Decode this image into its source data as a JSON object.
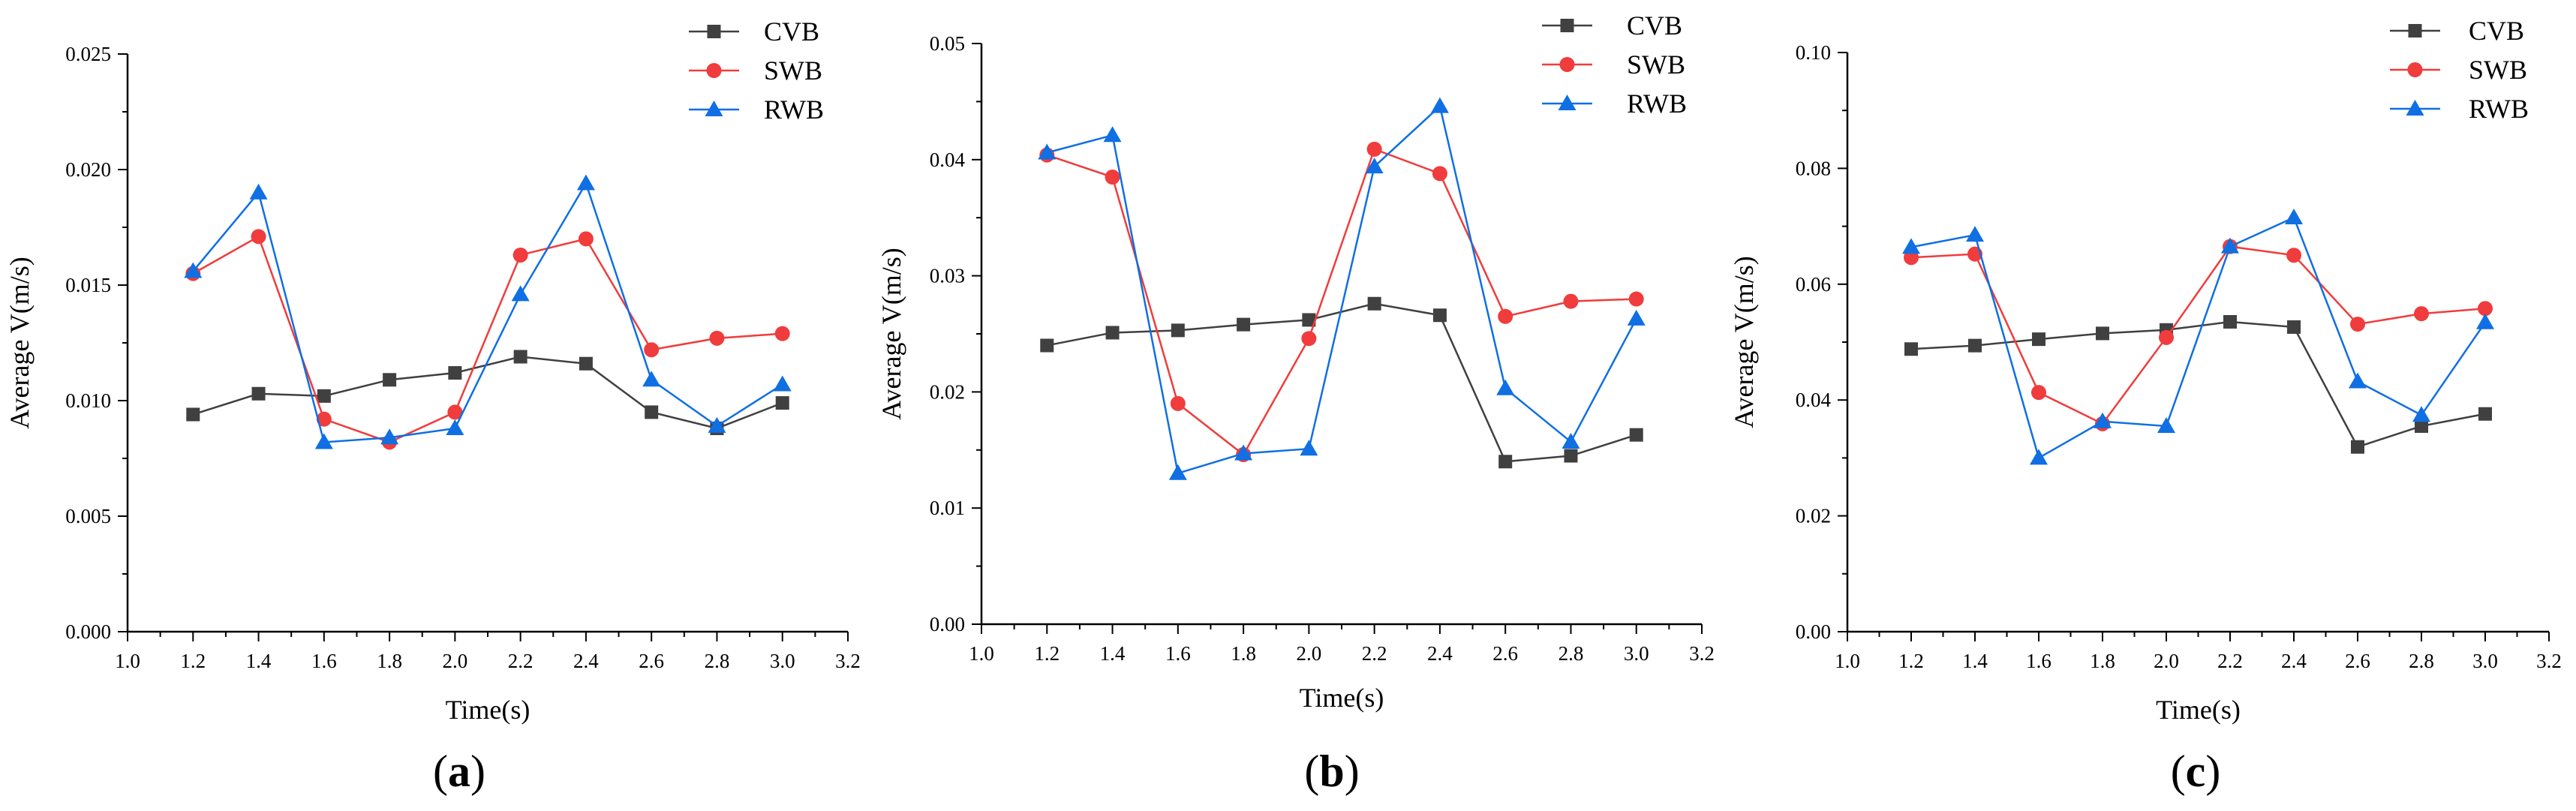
{
  "colors": {
    "CVB": "#404040",
    "SWB": "#f03c3c",
    "RWB": "#0f6fe3",
    "axis": "#000000"
  },
  "chart_data": [
    {
      "type": "line",
      "panel": "a",
      "title": "",
      "xlabel": "Time(s)",
      "ylabel": "Average V(m/s)",
      "xlim": [
        1.0,
        3.2
      ],
      "ylim": [
        0.0,
        0.025
      ],
      "xticks": [
        1.0,
        1.2,
        1.4,
        1.6,
        1.8,
        2.0,
        2.2,
        2.4,
        2.6,
        2.8,
        3.0,
        3.2
      ],
      "xtick_labels": [
        "1.0",
        "1.2",
        "1.4",
        "1.6",
        "1.8",
        "2.0",
        "2.2",
        "2.4",
        "2.6",
        "2.8",
        "3.0",
        "3.2"
      ],
      "yticks": [
        0.0,
        0.005,
        0.01,
        0.015,
        0.02,
        0.025
      ],
      "ytick_labels": [
        "0.000",
        "0.005",
        "0.010",
        "0.015",
        "0.020",
        "0.025"
      ],
      "x": [
        1.2,
        1.4,
        1.6,
        1.8,
        2.0,
        2.2,
        2.4,
        2.6,
        2.8,
        3.0
      ],
      "series": [
        {
          "name": "CVB",
          "marker": "square",
          "values": [
            0.0094,
            0.0103,
            0.0102,
            0.0109,
            0.0112,
            0.0119,
            0.0116,
            0.0095,
            0.0088,
            0.0099
          ]
        },
        {
          "name": "SWB",
          "marker": "circle",
          "values": [
            0.0155,
            0.0171,
            0.0092,
            0.0082,
            0.0095,
            0.0163,
            0.017,
            0.0122,
            0.0127,
            0.0129
          ]
        },
        {
          "name": "RWB",
          "marker": "triangle",
          "values": [
            0.0156,
            0.019,
            0.0082,
            0.0084,
            0.0088,
            0.0146,
            0.0194,
            0.0109,
            0.0089,
            0.0107
          ]
        }
      ],
      "legend": [
        "CVB",
        "SWB",
        "RWB"
      ],
      "legend_position": "top-right",
      "grid": false,
      "label_letter": "a"
    },
    {
      "type": "line",
      "panel": "b",
      "title": "",
      "xlabel": "Time(s)",
      "ylabel": "Average V(m/s)",
      "xlim": [
        1.0,
        3.2
      ],
      "ylim": [
        0.0,
        0.05
      ],
      "xticks": [
        1.0,
        1.2,
        1.4,
        1.6,
        1.8,
        2.0,
        2.2,
        2.4,
        2.6,
        2.8,
        3.0,
        3.2
      ],
      "xtick_labels": [
        "1.0",
        "1.2",
        "1.4",
        "1.6",
        "1.8",
        "2.0",
        "2.2",
        "2.4",
        "2.6",
        "2.8",
        "3.0",
        "3.2"
      ],
      "yticks": [
        0.0,
        0.01,
        0.02,
        0.03,
        0.04,
        0.05
      ],
      "ytick_labels": [
        "0.00",
        "0.01",
        "0.02",
        "0.03",
        "0.04",
        "0.05"
      ],
      "x": [
        1.2,
        1.4,
        1.6,
        1.8,
        2.0,
        2.2,
        2.4,
        2.6,
        2.8,
        3.0
      ],
      "series": [
        {
          "name": "CVB",
          "marker": "square",
          "values": [
            0.024,
            0.0251,
            0.0253,
            0.0258,
            0.0262,
            0.0276,
            0.0266,
            0.014,
            0.0145,
            0.0163
          ]
        },
        {
          "name": "SWB",
          "marker": "circle",
          "values": [
            0.0404,
            0.0385,
            0.019,
            0.0146,
            0.0246,
            0.0409,
            0.0388,
            0.0265,
            0.0278,
            0.028
          ]
        },
        {
          "name": "RWB",
          "marker": "triangle",
          "values": [
            0.0406,
            0.0421,
            0.013,
            0.0147,
            0.0151,
            0.0394,
            0.0446,
            0.0203,
            0.0157,
            0.0263
          ]
        }
      ],
      "legend": [
        "CVB",
        "SWB",
        "RWB"
      ],
      "legend_position": "top-right",
      "grid": false,
      "label_letter": "b"
    },
    {
      "type": "line",
      "panel": "c",
      "title": "",
      "xlabel": "Time(s)",
      "ylabel": "Average V(m/s)",
      "xlim": [
        1.0,
        3.2
      ],
      "ylim": [
        0.0,
        0.1
      ],
      "xticks": [
        1.0,
        1.2,
        1.4,
        1.6,
        1.8,
        2.0,
        2.2,
        2.4,
        2.6,
        2.8,
        3.0,
        3.2
      ],
      "xtick_labels": [
        "1.0",
        "1.2",
        "1.4",
        "1.6",
        "1.8",
        "2.0",
        "2.2",
        "2.4",
        "2.6",
        "2.8",
        "3.0",
        "3.2"
      ],
      "yticks": [
        0.0,
        0.02,
        0.04,
        0.06,
        0.08,
        0.1
      ],
      "ytick_labels": [
        "0.00",
        "0.02",
        "0.04",
        "0.06",
        "0.08",
        "0.10"
      ],
      "x": [
        1.2,
        1.4,
        1.6,
        1.8,
        2.0,
        2.2,
        2.4,
        2.6,
        2.8,
        3.0
      ],
      "series": [
        {
          "name": "CVB",
          "marker": "square",
          "values": [
            0.0488,
            0.0494,
            0.0505,
            0.0515,
            0.0521,
            0.0535,
            0.0526,
            0.0319,
            0.0355,
            0.0376
          ]
        },
        {
          "name": "SWB",
          "marker": "circle",
          "values": [
            0.0646,
            0.0652,
            0.0413,
            0.0359,
            0.0508,
            0.0665,
            0.065,
            0.0531,
            0.0549,
            0.0558
          ]
        },
        {
          "name": "RWB",
          "marker": "triangle",
          "values": [
            0.0664,
            0.0685,
            0.03,
            0.0363,
            0.0355,
            0.0665,
            0.0715,
            0.0432,
            0.0374,
            0.0534
          ]
        }
      ],
      "legend": [
        "CVB",
        "SWB",
        "RWB"
      ],
      "legend_position": "top-right",
      "grid": false,
      "label_letter": "c"
    }
  ]
}
